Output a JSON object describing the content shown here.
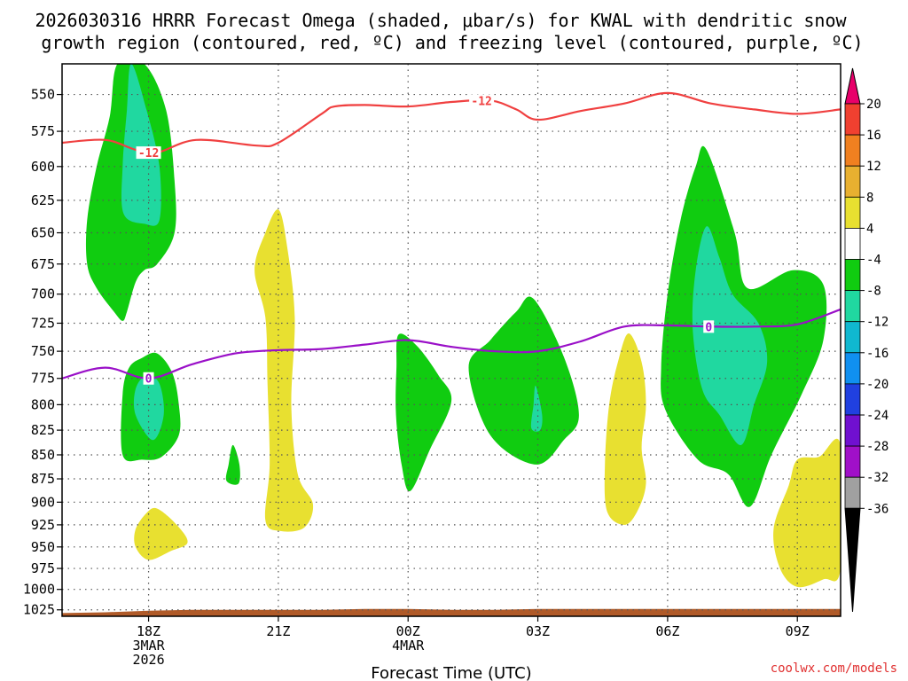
{
  "chart_data": {
    "type": "time-height contour",
    "title_line1": "2026030316 HRRR Forecast Omega (shaded, μbar/s) for KWAL with dendritic snow",
    "title_line2": "growth region (contoured, red, ºC) and freezing level (contoured, purple, ºC)",
    "xlabel": "Forecast Time (UTC)",
    "credit": "coolwx.com/models",
    "x_range_hours": [
      16,
      34
    ],
    "y_range_mb": [
      1033,
      530
    ],
    "y_ticks": [
      550,
      575,
      600,
      625,
      650,
      675,
      700,
      725,
      750,
      775,
      800,
      825,
      850,
      875,
      900,
      925,
      950,
      975,
      1000,
      1025
    ],
    "x_ticks": [
      {
        "h": 18,
        "label": "18Z",
        "sub1": "3MAR",
        "sub2": "2026"
      },
      {
        "h": 21,
        "label": "21Z",
        "sub1": "",
        "sub2": ""
      },
      {
        "h": 24,
        "label": "00Z",
        "sub1": "4MAR",
        "sub2": ""
      },
      {
        "h": 27,
        "label": "03Z",
        "sub1": "",
        "sub2": ""
      },
      {
        "h": 30,
        "label": "06Z",
        "sub1": "",
        "sub2": ""
      },
      {
        "h": 33,
        "label": "09Z",
        "sub1": "",
        "sub2": ""
      }
    ],
    "colorbar": {
      "bounds": [
        20,
        16,
        12,
        8,
        4,
        -4,
        -8,
        -12,
        -16,
        -20,
        -24,
        -28,
        -32,
        -36
      ],
      "colors": [
        "#e8006a",
        "#f04030",
        "#f08020",
        "#e8b030",
        "#e8e030",
        "#ffffff",
        "#10cc10",
        "#20d8a0",
        "#10b8d0",
        "#1090f0",
        "#2040e0",
        "#7010d0",
        "#a010c8",
        "#a0a0a0",
        "#000000"
      ]
    },
    "dgz_line": {
      "label": "-12",
      "color": "#f04040",
      "label_points": [
        {
          "h": 18,
          "p": 590
        },
        {
          "h": 25.7,
          "p": 554
        }
      ],
      "points": [
        [
          16,
          583
        ],
        [
          17,
          581
        ],
        [
          17.7,
          588
        ],
        [
          18.2,
          590
        ],
        [
          19.1,
          581
        ],
        [
          20.5,
          585
        ],
        [
          21,
          583
        ],
        [
          22,
          563
        ],
        [
          22.3,
          558
        ],
        [
          23,
          557
        ],
        [
          24,
          558
        ],
        [
          25,
          555
        ],
        [
          25.9,
          554
        ],
        [
          26.5,
          560
        ],
        [
          27,
          567
        ],
        [
          28,
          561
        ],
        [
          29,
          556
        ],
        [
          30,
          549
        ],
        [
          31,
          556
        ],
        [
          32,
          560
        ],
        [
          33,
          563
        ],
        [
          34,
          560
        ]
      ]
    },
    "freezing_line": {
      "label": "0",
      "color": "#9a10c8",
      "label_points": [
        {
          "h": 18,
          "p": 775
        },
        {
          "h": 30.95,
          "p": 728
        }
      ],
      "points": [
        [
          16,
          775
        ],
        [
          17,
          765
        ],
        [
          18,
          775
        ],
        [
          19,
          762
        ],
        [
          20,
          752
        ],
        [
          21,
          749
        ],
        [
          22,
          748
        ],
        [
          23,
          744
        ],
        [
          24,
          740
        ],
        [
          25,
          746
        ],
        [
          26,
          750
        ],
        [
          27,
          750
        ],
        [
          28,
          741
        ],
        [
          29,
          728
        ],
        [
          30,
          727
        ],
        [
          31,
          728
        ],
        [
          32,
          728
        ],
        [
          33,
          726
        ],
        [
          34,
          713
        ]
      ]
    },
    "shaded_regions": [
      {
        "level": -4,
        "color": "#10cc10",
        "points": [
          [
            17.28,
            530
          ],
          [
            17.9,
            530
          ],
          [
            18.4,
            560
          ],
          [
            18.6,
            610
          ],
          [
            18.6,
            650
          ],
          [
            18.2,
            675
          ],
          [
            17.9,
            680
          ],
          [
            17.7,
            690
          ],
          [
            17.5,
            715
          ],
          [
            17.4,
            723
          ],
          [
            17.2,
            715
          ],
          [
            16.8,
            695
          ],
          [
            16.58,
            675
          ],
          [
            16.58,
            640
          ],
          [
            16.8,
            600
          ],
          [
            17.1,
            565
          ]
        ]
      },
      {
        "level": -8,
        "color": "#20d8a0",
        "points": [
          [
            17.6,
            530
          ],
          [
            17.95,
            560
          ],
          [
            18.25,
            600
          ],
          [
            18.25,
            640
          ],
          [
            17.9,
            643
          ],
          [
            17.42,
            635
          ],
          [
            17.4,
            600
          ],
          [
            17.5,
            560
          ]
        ]
      },
      {
        "level": -4,
        "color": "#10cc10",
        "points": [
          [
            17.85,
            756
          ],
          [
            18.2,
            752
          ],
          [
            18.55,
            770
          ],
          [
            18.7,
            800
          ],
          [
            18.7,
            830
          ],
          [
            18.3,
            852
          ],
          [
            17.85,
            855
          ],
          [
            17.4,
            850
          ],
          [
            17.4,
            790
          ],
          [
            17.55,
            765
          ]
        ]
      },
      {
        "level": -8,
        "color": "#20d8a0",
        "points": [
          [
            17.95,
            772
          ],
          [
            18.25,
            780
          ],
          [
            18.35,
            810
          ],
          [
            18.1,
            835
          ],
          [
            17.7,
            810
          ],
          [
            17.7,
            785
          ]
        ]
      },
      {
        "level": -4,
        "color": "#10cc10",
        "points": [
          [
            19.95,
            840
          ],
          [
            20.1,
            860
          ],
          [
            20.08,
            880
          ],
          [
            19.8,
            877
          ],
          [
            19.85,
            860
          ]
        ]
      },
      {
        "level": -4,
        "color": "#10cc10",
        "points": [
          [
            23.78,
            735
          ],
          [
            24.2,
            745
          ],
          [
            24.7,
            772
          ],
          [
            25.0,
            797
          ],
          [
            24.5,
            845
          ],
          [
            24.05,
            888
          ],
          [
            23.85,
            860
          ],
          [
            23.72,
            810
          ],
          [
            23.73,
            765
          ]
        ]
      },
      {
        "level": -4,
        "color": "#10cc10",
        "points": [
          [
            26.9,
            704
          ],
          [
            27.6,
            755
          ],
          [
            27.95,
            810
          ],
          [
            27.6,
            835
          ],
          [
            26.95,
            860
          ],
          [
            25.9,
            830
          ],
          [
            25.4,
            765
          ],
          [
            25.9,
            740
          ],
          [
            26.5,
            715
          ]
        ]
      },
      {
        "level": -8,
        "color": "#20d8a0",
        "points": [
          [
            26.95,
            782
          ],
          [
            27.1,
            810
          ],
          [
            27.05,
            825
          ],
          [
            26.85,
            823
          ],
          [
            26.9,
            800
          ]
        ]
      },
      {
        "level": -4,
        "color": "#10cc10",
        "points": [
          [
            30.9,
            588
          ],
          [
            31.55,
            650
          ],
          [
            31.85,
            695
          ],
          [
            32.9,
            680
          ],
          [
            33.6,
            692
          ],
          [
            33.6,
            740
          ],
          [
            33.1,
            790
          ],
          [
            32.4,
            850
          ],
          [
            31.9,
            905
          ],
          [
            31.4,
            870
          ],
          [
            30.7,
            855
          ],
          [
            29.95,
            805
          ],
          [
            29.85,
            765
          ],
          [
            30.0,
            700
          ],
          [
            30.3,
            640
          ],
          [
            30.65,
            600
          ]
        ]
      },
      {
        "level": -8,
        "color": "#20d8a0",
        "points": [
          [
            30.9,
            645
          ],
          [
            31.2,
            670
          ],
          [
            31.5,
            700
          ],
          [
            32.1,
            725
          ],
          [
            32.3,
            760
          ],
          [
            32.0,
            800
          ],
          [
            31.7,
            840
          ],
          [
            31.2,
            810
          ],
          [
            30.8,
            785
          ],
          [
            30.58,
            730
          ],
          [
            30.65,
            680
          ]
        ]
      },
      {
        "level": 4,
        "color": "#e8e030",
        "points": [
          [
            21.0,
            632
          ],
          [
            21.2,
            660
          ],
          [
            21.38,
            720
          ],
          [
            21.3,
            800
          ],
          [
            21.45,
            870
          ],
          [
            21.8,
            902
          ],
          [
            21.6,
            928
          ],
          [
            21.05,
            932
          ],
          [
            20.7,
            920
          ],
          [
            20.8,
            860
          ],
          [
            20.75,
            780
          ],
          [
            20.7,
            720
          ],
          [
            20.45,
            680
          ],
          [
            20.7,
            650
          ]
        ]
      },
      {
        "level": 4,
        "color": "#e8e030",
        "points": [
          [
            18.2,
            907
          ],
          [
            18.65,
            925
          ],
          [
            18.9,
            945
          ],
          [
            18.5,
            955
          ],
          [
            18.0,
            965
          ],
          [
            17.7,
            950
          ],
          [
            17.7,
            930
          ],
          [
            17.95,
            912
          ]
        ]
      },
      {
        "level": 4,
        "color": "#e8e030",
        "points": [
          [
            29.1,
            734
          ],
          [
            29.4,
            760
          ],
          [
            29.5,
            800
          ],
          [
            29.4,
            842
          ],
          [
            29.5,
            880
          ],
          [
            29.3,
            910
          ],
          [
            29.0,
            925
          ],
          [
            28.6,
            910
          ],
          [
            28.55,
            860
          ],
          [
            28.65,
            800
          ],
          [
            28.85,
            760
          ]
        ]
      },
      {
        "level": 4,
        "color": "#e8e030",
        "points": [
          [
            34.0,
            840
          ],
          [
            34.0,
            975
          ],
          [
            33.6,
            988
          ],
          [
            33.0,
            997
          ],
          [
            32.6,
            975
          ],
          [
            32.45,
            930
          ],
          [
            32.8,
            882
          ],
          [
            33.0,
            855
          ],
          [
            33.5,
            852
          ]
        ]
      }
    ],
    "terrain": {
      "color": "#b05a28",
      "top_points": [
        [
          16,
          1029
        ],
        [
          17,
          1028
        ],
        [
          18,
          1026
        ],
        [
          19,
          1025
        ],
        [
          20,
          1025
        ],
        [
          21,
          1025
        ],
        [
          22,
          1025
        ],
        [
          23,
          1024
        ],
        [
          24,
          1024
        ],
        [
          25,
          1025
        ],
        [
          26,
          1025
        ],
        [
          27,
          1024
        ],
        [
          28,
          1024
        ],
        [
          29,
          1024
        ],
        [
          30,
          1024
        ],
        [
          31,
          1024
        ],
        [
          32,
          1024
        ],
        [
          33,
          1024
        ],
        [
          34,
          1024
        ]
      ]
    }
  }
}
